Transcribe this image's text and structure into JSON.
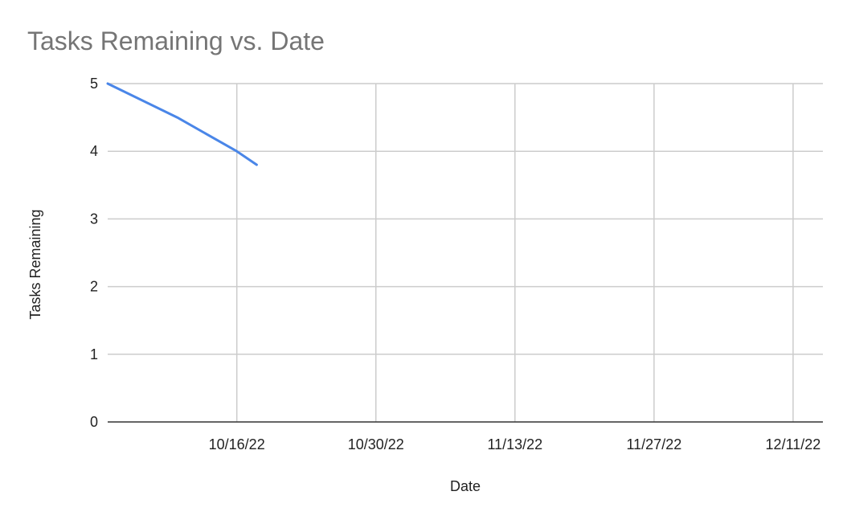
{
  "chart_data": {
    "type": "line",
    "title": "Tasks Remaining vs. Date",
    "xlabel": "Date",
    "ylabel": "Tasks Remaining",
    "x_axis": {
      "min": "2022-10-03",
      "max": "2022-12-14",
      "ticks": [
        {
          "date": "2022-10-16",
          "label": "10/16/22"
        },
        {
          "date": "2022-10-30",
          "label": "10/30/22"
        },
        {
          "date": "2022-11-13",
          "label": "11/13/22"
        },
        {
          "date": "2022-11-27",
          "label": "11/27/22"
        },
        {
          "date": "2022-12-11",
          "label": "12/11/22"
        }
      ]
    },
    "y_axis": {
      "min": 0,
      "max": 5,
      "ticks": [
        {
          "value": 0,
          "label": "0"
        },
        {
          "value": 1,
          "label": "1"
        },
        {
          "value": 2,
          "label": "2"
        },
        {
          "value": 3,
          "label": "3"
        },
        {
          "value": 4,
          "label": "4"
        },
        {
          "value": 5,
          "label": "5"
        }
      ]
    },
    "grid": true,
    "legend": "none",
    "series": [
      {
        "color": "#4a86e8",
        "points": [
          {
            "x": "2022-10-03",
            "y": 5
          },
          {
            "x": "2022-10-10",
            "y": 4.5
          },
          {
            "x": "2022-10-16",
            "y": 4
          },
          {
            "x": "2022-10-18",
            "y": 3.8
          }
        ]
      }
    ]
  }
}
